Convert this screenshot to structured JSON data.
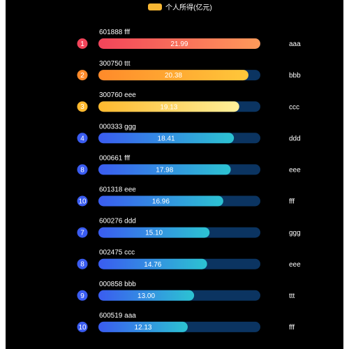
{
  "chart_data": {
    "type": "bar",
    "orientation": "horizontal",
    "legend": {
      "label": "个人所得(亿元)",
      "color": "#f7b733",
      "position": "top-center"
    },
    "xlim": [
      0,
      22
    ],
    "track_color": "#0b3461",
    "label_color": "#ffffff",
    "rows": [
      {
        "rank": "1",
        "code_name": "601888 fff",
        "value": 21.99,
        "right_label": "aaa",
        "grad": [
          "#f2445a",
          "#ff9a5a"
        ],
        "badge": "#f2445a"
      },
      {
        "rank": "2",
        "code_name": "300750 ttt",
        "value": 20.38,
        "right_label": "bbb",
        "grad": [
          "#ff8a2a",
          "#ffc83a"
        ],
        "badge": "#ff8a2a"
      },
      {
        "rank": "3",
        "code_name": "300760 eee",
        "value": 19.13,
        "right_label": "ccc",
        "grad": [
          "#ffb92e",
          "#fff09a"
        ],
        "badge": "#ffb92e"
      },
      {
        "rank": "4",
        "code_name": "000333 ggg",
        "value": 18.41,
        "right_label": "ddd",
        "grad": [
          "#3a5cf0",
          "#2cc3d2"
        ],
        "badge": "#3a5cf0"
      },
      {
        "rank": "8",
        "code_name": "000661 fff",
        "value": 17.98,
        "right_label": "eee",
        "grad": [
          "#3a5cf0",
          "#2cc3d2"
        ],
        "badge": "#3a5cf0"
      },
      {
        "rank": "10",
        "code_name": "601318 eee",
        "value": 16.96,
        "right_label": "fff",
        "grad": [
          "#3a5cf0",
          "#2cc3d2"
        ],
        "badge": "#3a5cf0"
      },
      {
        "rank": "7",
        "code_name": "600276 ddd",
        "value": 15.1,
        "right_label": "ggg",
        "grad": [
          "#3a5cf0",
          "#2cc3d2"
        ],
        "badge": "#3a5cf0"
      },
      {
        "rank": "8",
        "code_name": "002475 ccc",
        "value": 14.76,
        "right_label": "eee",
        "grad": [
          "#3a5cf0",
          "#2cc3d2"
        ],
        "badge": "#3a5cf0"
      },
      {
        "rank": "9",
        "code_name": "000858 bbb",
        "value": 13.0,
        "right_label": "ttt",
        "grad": [
          "#3a5cf0",
          "#2cc3d2"
        ],
        "badge": "#3a5cf0"
      },
      {
        "rank": "10",
        "code_name": "600519 aaa",
        "value": 12.13,
        "right_label": "fff",
        "grad": [
          "#3a5cf0",
          "#2cc3d2"
        ],
        "badge": "#3a5cf0"
      }
    ]
  }
}
